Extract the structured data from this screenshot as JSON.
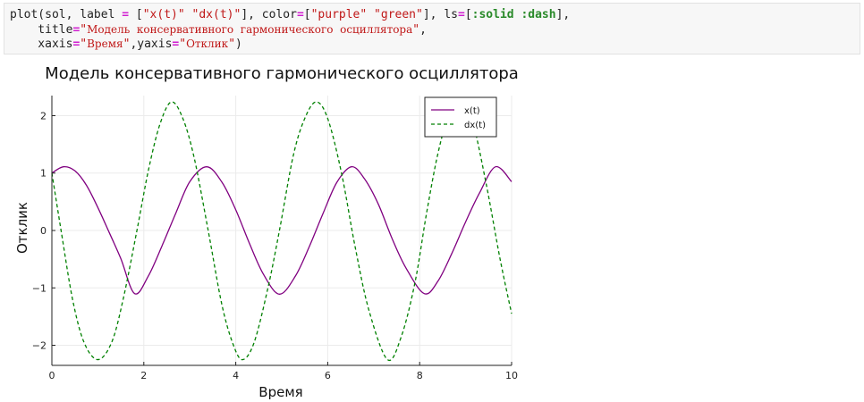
{
  "code": {
    "line1": {
      "p1": "plot(sol, label ",
      "eq1": "=",
      "p2": " [",
      "s1": "\"x(t)\"",
      "p3": " ",
      "s2": "\"dx(t)\"",
      "p4": "], color",
      "eq2": "=",
      "p5": "[",
      "s3": "\"purple\"",
      "p6": " ",
      "s4": "\"green\"",
      "p7": "], ls",
      "eq3": "=",
      "p8": "[",
      "sym1": ":solid",
      "p9": " ",
      "sym2": ":dash",
      "p10": "],"
    },
    "line2": {
      "p1": "    title",
      "eq": "=",
      "q1": "\"",
      "s": "Модель  консервативного  гармонического  осциллятора",
      "q2": "\"",
      "p2": ","
    },
    "line3": {
      "p1": "    xaxis",
      "eq1": "=",
      "q1": "\"",
      "s1": "Время",
      "q2": "\"",
      "p2": ",yaxis",
      "eq2": "=",
      "q3": "\"",
      "s2": "Отклик",
      "q4": "\"",
      "p3": ")"
    }
  },
  "chart_data": {
    "type": "line",
    "title": "Модель консервативного гармонического осциллятора",
    "xlabel": "Время",
    "ylabel": "Отклик",
    "xlim": [
      0,
      10
    ],
    "ylim": [
      -2.35,
      2.35
    ],
    "x_ticks": [
      0,
      2,
      4,
      6,
      8,
      10
    ],
    "y_ticks": [
      -2,
      -1,
      0,
      1,
      2
    ],
    "y_tick_labels": [
      "−2",
      "−1",
      "0",
      "1",
      "2"
    ],
    "grid": true,
    "legend_position": "top-right",
    "series": [
      {
        "name": "x(t)",
        "color": "#800080",
        "style": "solid",
        "x": [
          0,
          0.25,
          0.5,
          0.75,
          1.0,
          1.25,
          1.5,
          1.8,
          2.1,
          2.4,
          2.7,
          3.0,
          3.37,
          3.7,
          4.0,
          4.3,
          4.6,
          4.95,
          5.3,
          5.6,
          5.9,
          6.2,
          6.52,
          6.8,
          7.1,
          7.4,
          7.7,
          8.1,
          8.4,
          8.7,
          9.0,
          9.3,
          9.65,
          10.0
        ],
        "y": [
          1.0,
          1.11,
          1.04,
          0.79,
          0.4,
          -0.04,
          -0.49,
          -1.1,
          -0.79,
          -0.26,
          0.31,
          0.85,
          1.11,
          0.84,
          0.36,
          -0.23,
          -0.76,
          -1.11,
          -0.79,
          -0.28,
          0.3,
          0.84,
          1.11,
          0.9,
          0.46,
          -0.14,
          -0.65,
          -1.1,
          -0.88,
          -0.4,
          0.15,
          0.65,
          1.11,
          0.85
        ]
      },
      {
        "name": "dx(t)",
        "color": "#008000",
        "style": "dash",
        "x": [
          0,
          0.2,
          0.45,
          0.7,
          1.0,
          1.3,
          1.55,
          1.85,
          2.1,
          2.35,
          2.6,
          2.85,
          3.1,
          3.4,
          3.7,
          3.95,
          4.15,
          4.4,
          4.7,
          4.95,
          5.25,
          5.5,
          5.75,
          6.0,
          6.3,
          6.6,
          6.9,
          7.3,
          7.6,
          7.9,
          8.15,
          8.4,
          8.65,
          8.9,
          9.15,
          9.45,
          9.75,
          10.0
        ],
        "y": [
          1.0,
          0.0,
          -1.2,
          -1.95,
          -2.25,
          -1.95,
          -1.2,
          0.0,
          1.05,
          1.85,
          2.24,
          1.95,
          1.25,
          0.0,
          -1.3,
          -2.0,
          -2.25,
          -1.95,
          -1.0,
          0.0,
          1.3,
          1.95,
          2.24,
          1.95,
          1.0,
          -0.3,
          -1.4,
          -2.25,
          -1.85,
          -0.9,
          0.3,
          1.35,
          2.05,
          2.24,
          1.9,
          0.8,
          -0.5,
          -1.45
        ]
      }
    ]
  }
}
